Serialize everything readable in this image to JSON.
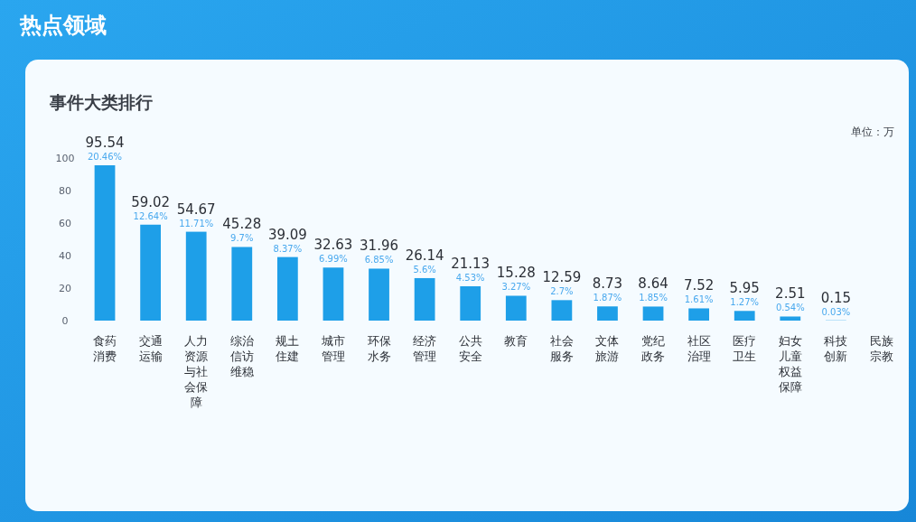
{
  "chart_data": {
    "type": "bar",
    "title": "热点领域",
    "subtitle": "事件大类排行",
    "categories": [
      "食药消费",
      "交通运输",
      "人力资源与社会保障",
      "综治信访维稳",
      "规土住建",
      "城市管理",
      "环保水务",
      "经济管理",
      "公共安全",
      "教育",
      "社会服务",
      "文体旅游",
      "党纪政务",
      "社区治理",
      "医疗卫生",
      "妇女儿童权益保障",
      "科技创新",
      "民族宗教"
    ],
    "values": [
      95.54,
      59.02,
      54.67,
      45.28,
      39.09,
      32.63,
      31.96,
      26.14,
      21.13,
      15.28,
      12.59,
      8.73,
      8.64,
      7.52,
      5.95,
      2.51,
      0.15,
      null
    ],
    "color": "#1e9fe8",
    "ylim": [
      0,
      100
    ],
    "yticks": [
      0,
      20,
      40,
      60,
      80,
      100
    ],
    "data_labels": true,
    "annotations": [
      {
        "text": "20.46%",
        "x": "食药消费",
        "y": 95.54
      },
      {
        "text": "12.64%",
        "x": "交通运输",
        "y": 59.02
      },
      {
        "text": "11.71%",
        "x": "人力资源与社会保障",
        "y": 54.67
      },
      {
        "text": "9.7%",
        "x": "综治信访维稳",
        "y": 45.28
      },
      {
        "text": "8.37%",
        "x": "规土住建",
        "y": 39.09
      },
      {
        "text": "6.99%",
        "x": "城市管理",
        "y": 32.63
      },
      {
        "text": "6.85%",
        "x": "环保水务",
        "y": 31.96
      },
      {
        "text": "5.6%",
        "x": "经济管理",
        "y": 26.14
      },
      {
        "text": "4.53%",
        "x": "公共安全",
        "y": 21.13
      },
      {
        "text": "3.27%",
        "x": "教育",
        "y": 15.28
      },
      {
        "text": "2.7%",
        "x": "社会服务",
        "y": 12.59
      },
      {
        "text": "1.87%",
        "x": "文体旅游",
        "y": 8.73
      },
      {
        "text": "1.85%",
        "x": "党纪政务",
        "y": 8.64
      },
      {
        "text": "1.61%",
        "x": "社区治理",
        "y": 7.52
      },
      {
        "text": "1.27%",
        "x": "医疗卫生",
        "y": 5.95
      },
      {
        "text": "0.54%",
        "x": "妇女儿童权益保障",
        "y": 2.51
      },
      {
        "text": "0.03%",
        "x": "科技创新",
        "y": 0.15
      },
      "单位：万"
    ]
  }
}
